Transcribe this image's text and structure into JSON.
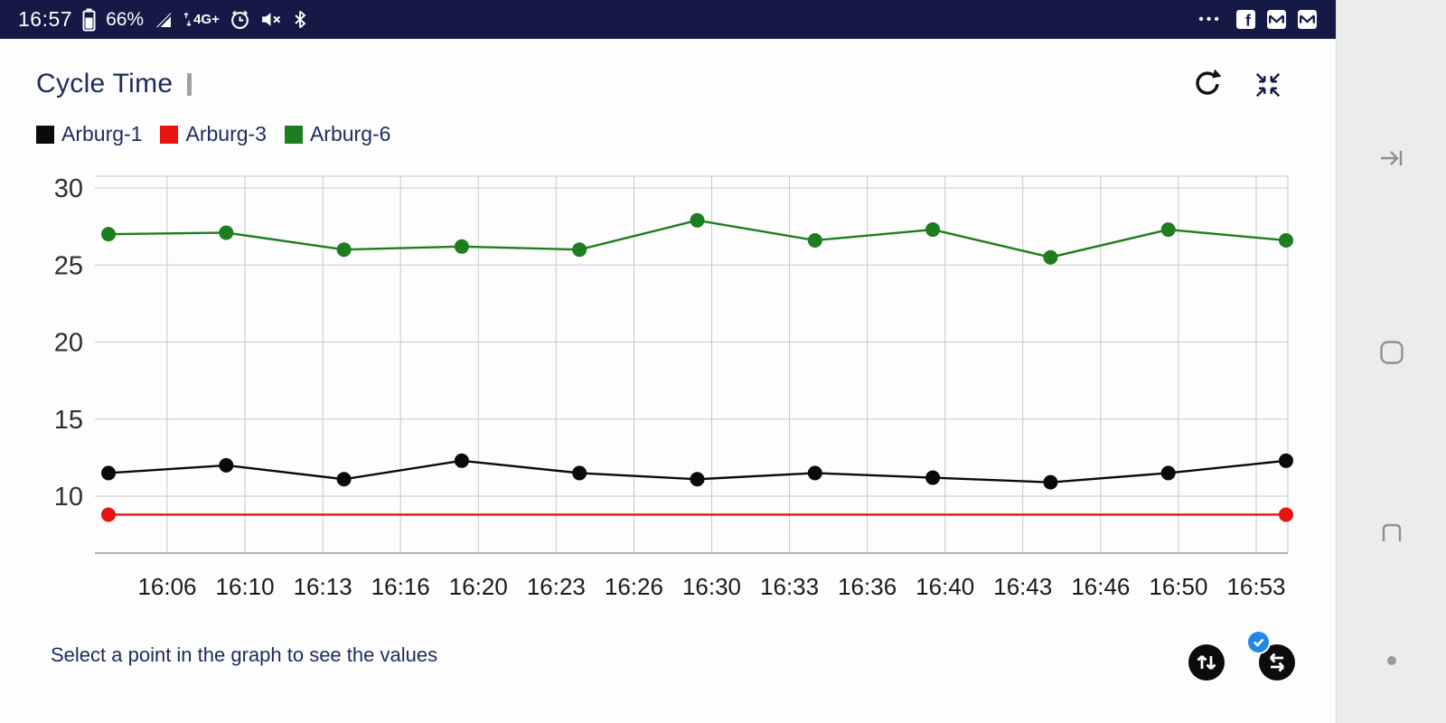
{
  "status_bar": {
    "time": "16:57",
    "battery_percent": "66%",
    "network_label": "4G+",
    "overflow": "•••"
  },
  "header": {
    "title": "Cycle Time"
  },
  "legend": [
    {
      "label": "Arburg-1",
      "color": "#0a0a0a"
    },
    {
      "label": "Arburg-3",
      "color": "#e81414"
    },
    {
      "label": "Arburg-6",
      "color": "#1e7d1f"
    }
  ],
  "chart_data": {
    "type": "line",
    "title": "Cycle Time",
    "x_tick_labels": [
      "16:06",
      "16:10",
      "16:13",
      "16:16",
      "16:20",
      "16:23",
      "16:26",
      "16:30",
      "16:33",
      "16:36",
      "16:40",
      "16:43",
      "16:46",
      "16:50",
      "16:53"
    ],
    "y_ticks": [
      10,
      15,
      20,
      25,
      30
    ],
    "ylim": [
      6.3,
      30.8
    ],
    "grid": true,
    "legend_position": "top-left",
    "series": [
      {
        "name": "Arburg-1",
        "color": "#0a0a0a",
        "markers": "all",
        "values": [
          11.5,
          12.0,
          11.1,
          12.3,
          11.5,
          11.1,
          11.5,
          11.2,
          10.9,
          11.5,
          12.3
        ]
      },
      {
        "name": "Arburg-3",
        "color": "#e81414",
        "markers": "endpoints",
        "values": [
          8.8,
          8.8,
          8.8,
          8.8,
          8.8,
          8.8,
          8.8,
          8.8,
          8.8,
          8.8,
          8.8
        ]
      },
      {
        "name": "Arburg-6",
        "color": "#1e7d1f",
        "markers": "all",
        "values": [
          27.0,
          27.1,
          26.0,
          26.2,
          26.0,
          27.9,
          26.6,
          27.3,
          25.5,
          27.3,
          26.6
        ]
      }
    ]
  },
  "footer": {
    "hint": "Select a point in the graph to see the values"
  },
  "icons": {
    "status_left": [
      "battery-icon",
      "signal-icon",
      "network-arrows-icon",
      "alarm-icon",
      "volume-mute-icon",
      "bluetooth-icon"
    ],
    "status_right": [
      "overflow-dots",
      "facebook-icon",
      "mail-icon",
      "mail-icon"
    ],
    "header": [
      "refresh-icon",
      "collapse-icon"
    ],
    "footer": [
      "swap-vertical-icon",
      "swap-horizontal-icon",
      "check-badge-icon"
    ],
    "nav_rail": [
      "nav-back-icon",
      "nav-home-icon",
      "nav-recents-icon",
      "nav-hide-dot"
    ]
  }
}
